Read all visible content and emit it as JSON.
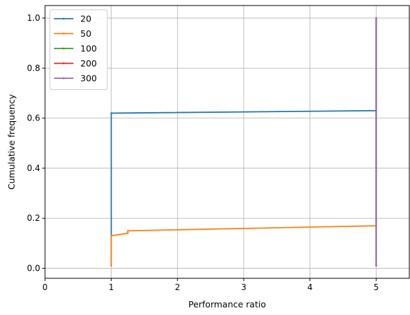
{
  "chart_data": {
    "type": "line",
    "title": "",
    "xlabel": "Performance ratio",
    "ylabel": "Cumulative frequency",
    "xlim": [
      0,
      5.5
    ],
    "ylim": [
      -0.04,
      1.05
    ],
    "xticks": [
      0,
      1,
      2,
      3,
      4,
      5
    ],
    "yticks": [
      0.0,
      0.2,
      0.4,
      0.6,
      0.8,
      1.0
    ],
    "xtick_labels": [
      "0",
      "1",
      "2",
      "3",
      "4",
      "5"
    ],
    "ytick_labels": [
      "0.0",
      "0.2",
      "0.4",
      "0.6",
      "0.8",
      "1.0"
    ],
    "grid": true,
    "legend_position": "top-left",
    "series": [
      {
        "name": "20",
        "color": "#1f77b4",
        "points": [
          [
            1,
            0.01
          ],
          [
            1,
            0.62
          ],
          [
            5,
            0.63
          ],
          [
            5,
            1.0
          ]
        ]
      },
      {
        "name": "50",
        "color": "#ff7f0e",
        "points": [
          [
            1,
            0.01
          ],
          [
            1,
            0.13
          ],
          [
            1.25,
            0.14
          ],
          [
            1.25,
            0.15
          ],
          [
            5,
            0.17
          ],
          [
            5,
            1.0
          ]
        ]
      },
      {
        "name": "100",
        "color": "#2ca02c",
        "points": [
          [
            5,
            0.01
          ],
          [
            5,
            1.0
          ]
        ]
      },
      {
        "name": "200",
        "color": "#d62728",
        "points": [
          [
            5,
            0.01
          ],
          [
            5,
            1.0
          ]
        ]
      },
      {
        "name": "300",
        "color": "#9467bd",
        "points": [
          [
            5,
            0.01
          ],
          [
            5,
            1.0
          ]
        ]
      }
    ]
  }
}
